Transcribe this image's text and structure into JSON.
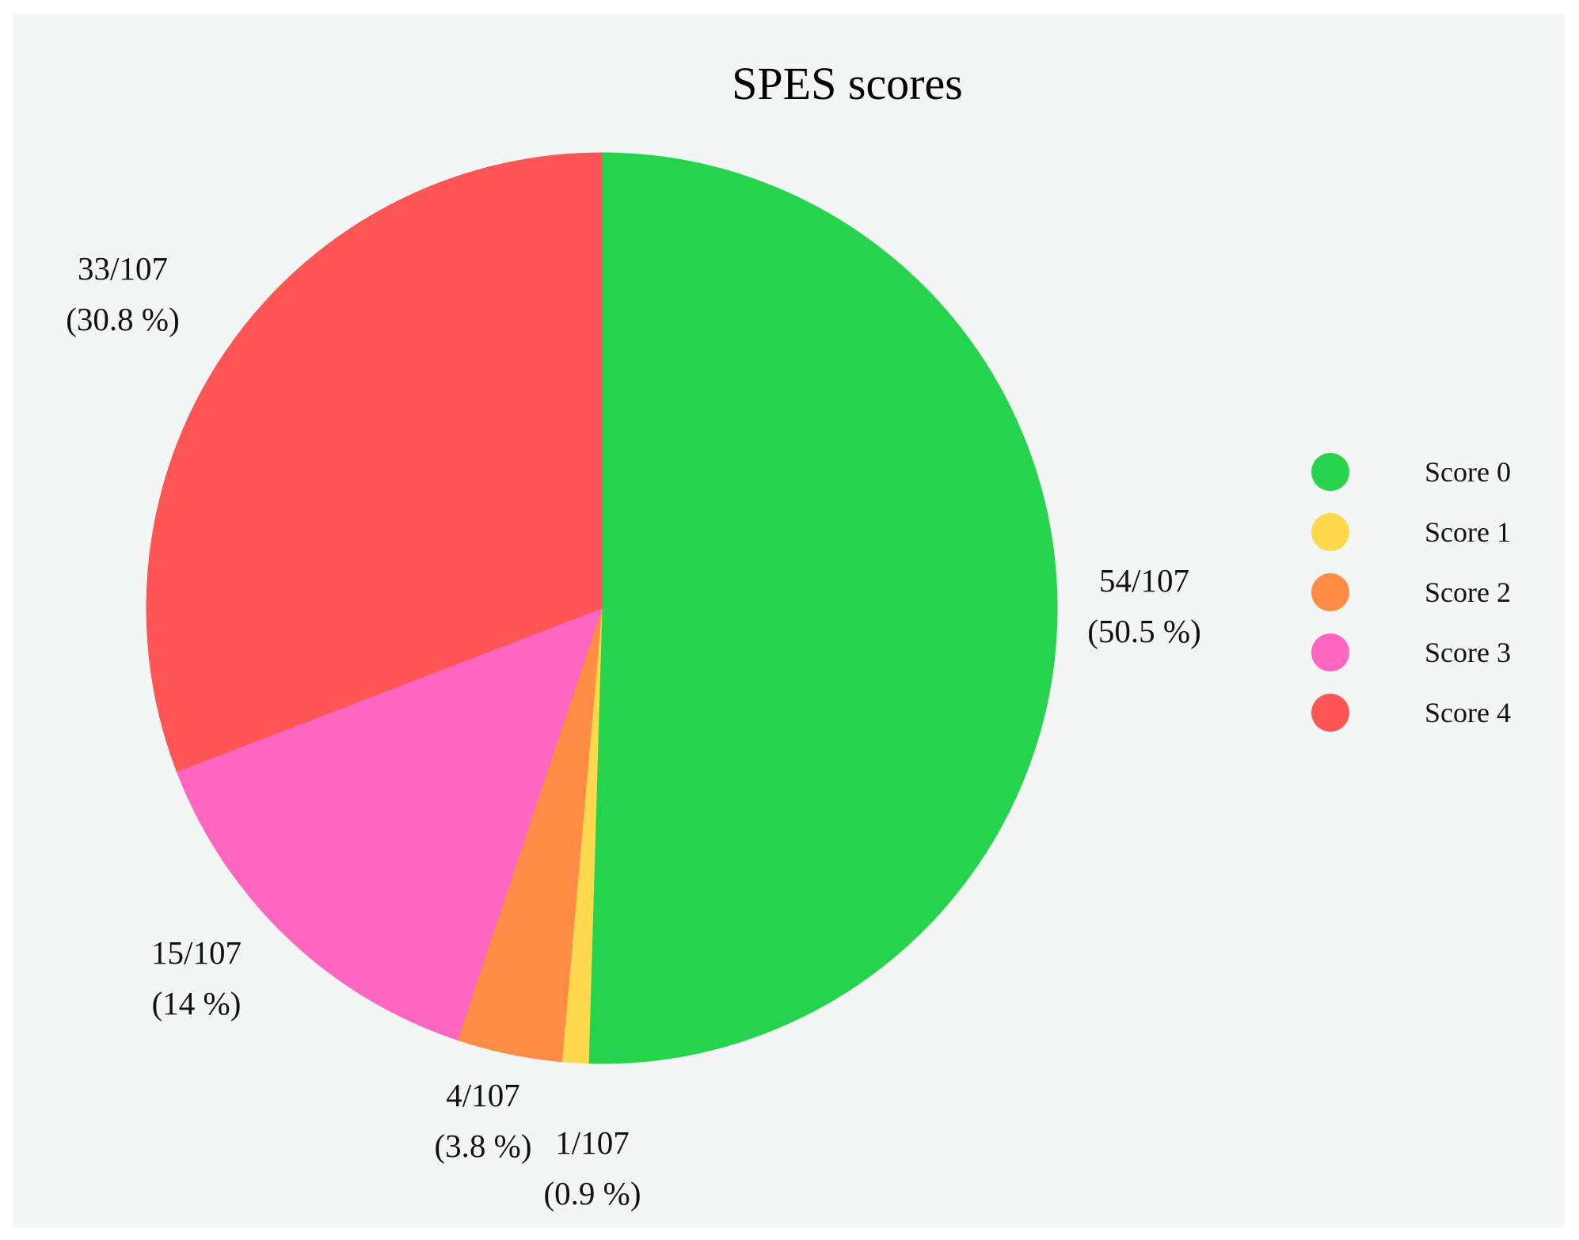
{
  "chart_data": {
    "type": "pie",
    "title": "SPES scores",
    "total": 107,
    "slices": [
      {
        "name": "Score 0",
        "value": 54,
        "percent": 50.5,
        "color": "#26d34d",
        "label_count": "54/107",
        "label_pct": "(50.5 %)"
      },
      {
        "name": "Score 1",
        "value": 1,
        "percent": 0.9,
        "color": "#ffd84d",
        "label_count": "1/107",
        "label_pct": "(0.9 %)"
      },
      {
        "name": "Score 2",
        "value": 4,
        "percent": 3.8,
        "color": "#ff8c45",
        "label_count": "4/107",
        "label_pct": "(3.8 %)"
      },
      {
        "name": "Score 3",
        "value": 15,
        "percent": 14,
        "color": "#ff66c0",
        "label_count": "15/107",
        "label_pct": "(14 %)"
      },
      {
        "name": "Score 4",
        "value": 33,
        "percent": 30.8,
        "color": "#ff5555",
        "label_count": "33/107",
        "label_pct": "(30.8 %)"
      }
    ],
    "legend_placement": "right",
    "start_angle": "12 o'clock",
    "direction": "clockwise"
  }
}
